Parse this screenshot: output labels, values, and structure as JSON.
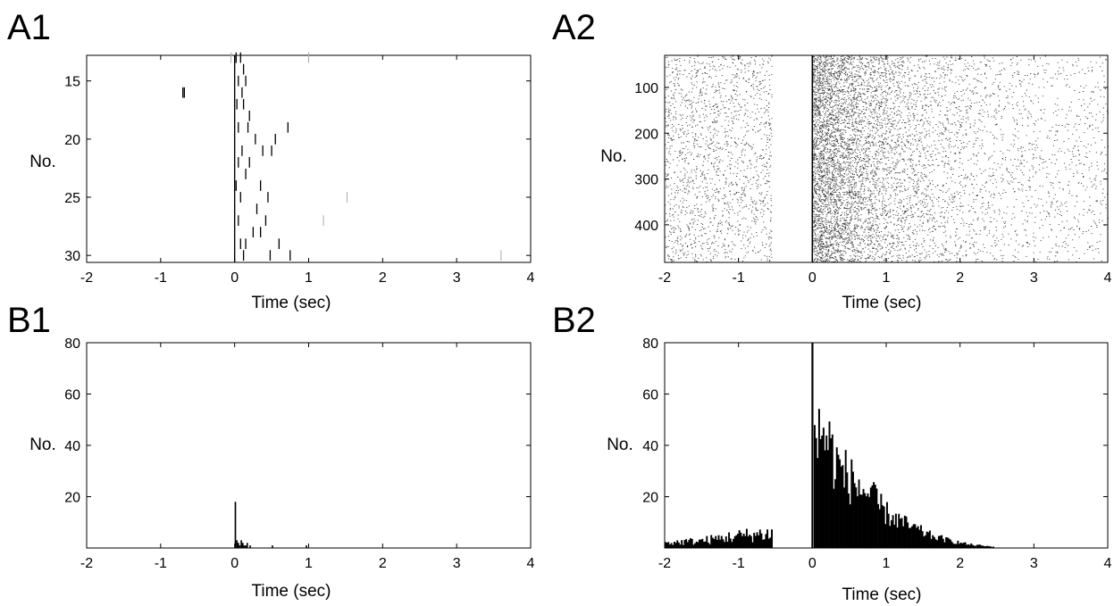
{
  "chart_data": [
    {
      "panel_label": "A1",
      "type": "scatter",
      "subtype": "raster",
      "xlabel": "Time (sec)",
      "ylabel": "No.",
      "xlim": [
        -2,
        4
      ],
      "ylim": [
        12.8,
        30.6
      ],
      "y_reversed": true,
      "xticks": [
        "-2",
        "-1",
        "0",
        "1",
        "2",
        "3",
        "4"
      ],
      "yticks": [
        "15",
        "20",
        "25",
        "30"
      ],
      "vline_x": 0,
      "points": [
        [
          -0.7,
          16
        ],
        [
          -0.68,
          16
        ],
        [
          0.02,
          13
        ],
        [
          0.08,
          13
        ],
        [
          0.12,
          14
        ],
        [
          0.05,
          15
        ],
        [
          0.15,
          15
        ],
        [
          0.1,
          16
        ],
        [
          0.03,
          17
        ],
        [
          0.12,
          17
        ],
        [
          0.2,
          18
        ],
        [
          0.05,
          19
        ],
        [
          0.18,
          19
        ],
        [
          0.72,
          19
        ],
        [
          0.28,
          20
        ],
        [
          0.55,
          20
        ],
        [
          0.1,
          21
        ],
        [
          0.38,
          21
        ],
        [
          0.5,
          21
        ],
        [
          0.05,
          22
        ],
        [
          0.2,
          22
        ],
        [
          0.15,
          23
        ],
        [
          0.02,
          24
        ],
        [
          0.35,
          24
        ],
        [
          0.08,
          25
        ],
        [
          0.45,
          25
        ],
        [
          0.3,
          26
        ],
        [
          0.05,
          27
        ],
        [
          0.42,
          27
        ],
        [
          0.25,
          28
        ],
        [
          0.35,
          28
        ],
        [
          0.08,
          29
        ],
        [
          0.15,
          29
        ],
        [
          0.6,
          29
        ],
        [
          0.48,
          30
        ],
        [
          0.75,
          30
        ],
        [
          0.12,
          30
        ]
      ],
      "faint_points": [
        [
          1.0,
          13
        ],
        [
          1.52,
          25
        ],
        [
          1.2,
          27
        ],
        [
          3.6,
          30
        ],
        [
          -0.05,
          13
        ]
      ]
    },
    {
      "panel_label": "A2",
      "type": "scatter",
      "subtype": "raster",
      "xlabel": "Time (sec)",
      "ylabel": "No.",
      "xlim": [
        -2,
        4
      ],
      "ylim": [
        30,
        482
      ],
      "y_reversed": true,
      "xticks": [
        "-2",
        "-1",
        "0",
        "1",
        "2",
        "3",
        "4"
      ],
      "yticks": [
        "100",
        "200",
        "300",
        "400"
      ],
      "vline_x": 0,
      "trials": 482,
      "blank_window": [
        -0.55,
        0
      ]
    },
    {
      "panel_label": "B1",
      "type": "bar",
      "subtype": "histogram",
      "xlabel": "Time (sec)",
      "ylabel": "No.",
      "xlim": [
        -2,
        4
      ],
      "ylim": [
        0,
        80
      ],
      "xticks": [
        "-2",
        "-1",
        "0",
        "1",
        "2",
        "3",
        "4"
      ],
      "yticks": [
        "20",
        "40",
        "60",
        "80"
      ],
      "bin_width": 0.02,
      "x": [
        0.0,
        0.02,
        0.04,
        0.06,
        0.08,
        0.1,
        0.12,
        0.14,
        0.16,
        0.2,
        0.5,
        0.96
      ],
      "values": [
        18,
        3,
        2,
        1,
        3,
        2,
        1,
        1,
        2,
        1,
        1,
        1
      ]
    },
    {
      "panel_label": "B2",
      "type": "bar",
      "subtype": "histogram",
      "xlabel": "Time (sec)",
      "ylabel": "No.",
      "xlim": [
        -2,
        4
      ],
      "ylim": [
        0,
        80
      ],
      "xticks": [
        "-2",
        "-1",
        "0",
        "1",
        "2",
        "3",
        "4"
      ],
      "yticks": [
        "20",
        "40",
        "60",
        "80"
      ],
      "bin_width": 0.02,
      "peak": {
        "x": 0.0,
        "value": 80
      },
      "pre_stimulus_level": [
        [
          -2.0,
          2
        ],
        [
          -1.5,
          3
        ],
        [
          -1.0,
          5
        ],
        [
          -0.55,
          6
        ]
      ],
      "post_stimulus_envelope": [
        [
          0.02,
          45
        ],
        [
          0.15,
          48
        ],
        [
          0.3,
          35
        ],
        [
          0.5,
          28
        ],
        [
          0.75,
          22
        ],
        [
          1.0,
          14
        ],
        [
          1.3,
          9
        ],
        [
          1.6,
          5
        ],
        [
          1.85,
          3
        ],
        [
          2.1,
          1.5
        ],
        [
          2.4,
          0.6
        ]
      ]
    }
  ]
}
